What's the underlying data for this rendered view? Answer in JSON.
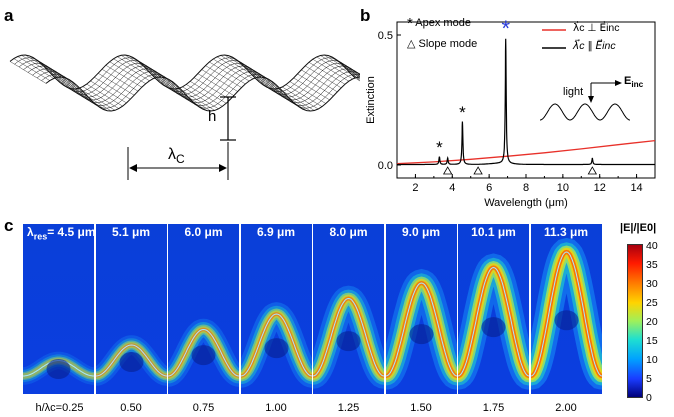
{
  "panel_a": {
    "letter": "a",
    "h_label": "h",
    "lambda_label": "λ",
    "lambda_sub": "C"
  },
  "panel_b": {
    "letter": "b",
    "legend_apex": "Apex mode",
    "legend_slope": "Slope mode",
    "legend_red": "λ⃗c ⊥ E⃗inc",
    "legend_black": "λ⃗c ∥ E⃗inc",
    "light_label": "light",
    "einc_label": "E",
    "einc_sub": "inc",
    "colors": {
      "red": "#e8312a",
      "black": "#000000",
      "blue_star": "#2a3bd9"
    },
    "chart_data": {
      "type": "line",
      "xlabel": "Wavelength (μm)",
      "ylabel": "Extinction",
      "xlim": [
        1,
        15
      ],
      "ylim": [
        -0.05,
        0.55
      ],
      "xticks": [
        2,
        4,
        6,
        8,
        10,
        12,
        14
      ],
      "yticks": [
        0.0,
        0.5
      ],
      "ytick_labels": [
        "0.0",
        "0.5"
      ],
      "series": [
        {
          "color": "red",
          "x": [
            1.0,
            3.0,
            5.0,
            7.0,
            9.0,
            11.0,
            13.0,
            15.0
          ],
          "y": [
            0.005,
            0.012,
            0.022,
            0.034,
            0.047,
            0.062,
            0.078,
            0.094
          ]
        },
        {
          "color": "black",
          "peaks": [
            {
              "x": 3.3,
              "y": 0.03
            },
            {
              "x": 3.75,
              "y": 0.025
            },
            {
              "x": 4.55,
              "y": 0.165
            },
            {
              "x": 6.9,
              "y": 0.48
            },
            {
              "x": 11.6,
              "y": 0.025
            }
          ]
        }
      ],
      "apex_markers_x": [
        3.3,
        4.55,
        6.9
      ],
      "slope_markers_x": [
        3.75,
        5.4,
        11.6
      ]
    }
  },
  "panel_c": {
    "letter": "c",
    "colorbar_title": "|E|/|E0|",
    "colorbar_ticks": [
      "40",
      "35",
      "30",
      "25",
      "20",
      "15",
      "10",
      "5",
      "0"
    ],
    "lambda_res_prefix": "λ",
    "lambda_res_sub": "res",
    "tiles": [
      {
        "label": "= 4.5 μm",
        "ratio": "h/λc=0.25",
        "r": 0.25
      },
      {
        "label": "5.1 μm",
        "ratio": "0.50",
        "r": 0.5
      },
      {
        "label": "6.0 μm",
        "ratio": "0.75",
        "r": 0.75
      },
      {
        "label": "6.9 μm",
        "ratio": "1.00",
        "r": 1.0
      },
      {
        "label": "8.0 μm",
        "ratio": "1.25",
        "r": 1.25
      },
      {
        "label": "9.0 μm",
        "ratio": "1.50",
        "r": 1.5
      },
      {
        "label": "10.1 μm",
        "ratio": "1.75",
        "r": 1.75
      },
      {
        "label": "11.3 μm",
        "ratio": "2.00",
        "r": 2.0
      }
    ]
  }
}
